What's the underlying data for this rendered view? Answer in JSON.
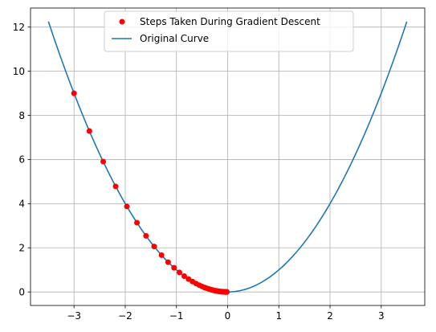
{
  "chart_data": {
    "type": "scatter",
    "title": "",
    "xlabel": "",
    "ylabel": "",
    "xlim": [
      -3.85,
      3.85
    ],
    "ylim": [
      -0.6125,
      12.8625
    ],
    "xticks": [
      -3,
      -2,
      -1,
      0,
      1,
      2,
      3
    ],
    "xtick_labels": [
      "−3",
      "−2",
      "−1",
      "0",
      "1",
      "2",
      "3"
    ],
    "yticks": [
      0,
      2,
      4,
      6,
      8,
      10,
      12
    ],
    "ytick_labels": [
      "0",
      "2",
      "4",
      "6",
      "8",
      "10",
      "12"
    ],
    "grid": true,
    "legend_position": "upper center",
    "series": [
      {
        "name": "Steps Taken During Gradient Descent",
        "kind": "scatter",
        "color": "#ff0000",
        "x": [
          -3.0,
          -2.7,
          -2.43,
          -2.187,
          -1.968,
          -1.771,
          -1.594,
          -1.435,
          -1.291,
          -1.162,
          -1.046,
          -0.941,
          -0.847,
          -0.763,
          -0.686,
          -0.618,
          -0.556,
          -0.5,
          -0.45,
          -0.405,
          -0.365,
          -0.328,
          -0.295,
          -0.266,
          -0.239,
          -0.215,
          -0.194,
          -0.174,
          -0.157,
          -0.141,
          -0.127,
          -0.114,
          -0.103,
          -0.093,
          -0.083,
          -0.075,
          -0.068,
          -0.061,
          -0.055,
          -0.049,
          -0.044,
          -0.04,
          -0.036,
          -0.032,
          -0.029,
          -0.026,
          -0.023,
          -0.021,
          -0.019,
          -0.017,
          -0.015
        ],
        "y": [
          9.0,
          7.29,
          5.905,
          4.783,
          3.874,
          3.138,
          2.542,
          2.059,
          1.668,
          1.351,
          1.094,
          0.886,
          0.718,
          0.581,
          0.471,
          0.382,
          0.309,
          0.25,
          0.203,
          0.164,
          0.133,
          0.108,
          0.087,
          0.071,
          0.057,
          0.046,
          0.038,
          0.03,
          0.025,
          0.02,
          0.016,
          0.013,
          0.011,
          0.009,
          0.007,
          0.006,
          0.005,
          0.004,
          0.003,
          0.002,
          0.002,
          0.002,
          0.001,
          0.001,
          0.001,
          0.001,
          0.001,
          0.0,
          0.0,
          0.0,
          0.0
        ]
      },
      {
        "name": "Original Curve",
        "kind": "line",
        "color": "#1f77b4",
        "function": "x^2",
        "x_range": [
          -3.5,
          3.5
        ]
      }
    ]
  }
}
